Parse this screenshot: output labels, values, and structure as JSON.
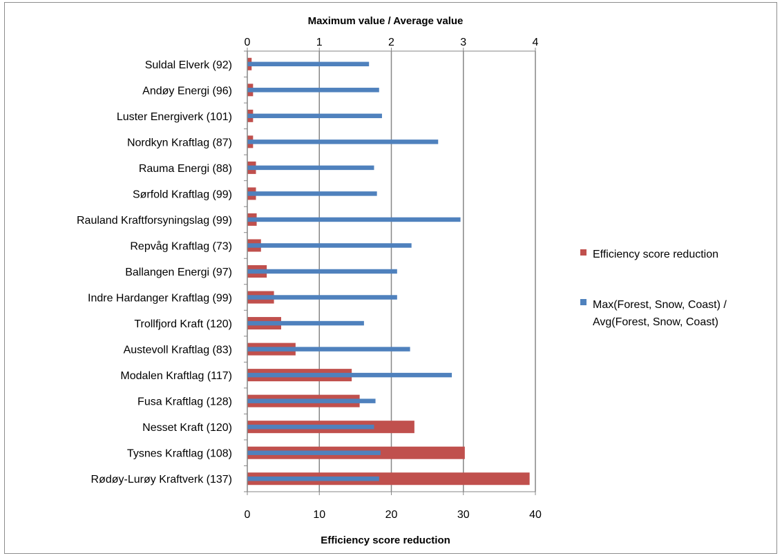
{
  "chart_data": {
    "type": "bar",
    "orientation": "horizontal",
    "categories": [
      "Suldal Elverk (92)",
      "Andøy Energi  (96)",
      "Luster Energiverk  (101)",
      "Nordkyn Kraftlag  (87)",
      "Rauma Energi  (88)",
      "Sørfold Kraftlag  (99)",
      "Rauland Kraftforsyningslag (99)",
      "Repvåg Kraftlag  (73)",
      "Ballangen Energi  (97)",
      "Indre Hardanger Kraftlag  (99)",
      "Trollfjord Kraft  (120)",
      "Austevoll Kraftlag  (83)",
      "Modalen Kraftlag  (117)",
      "Fusa Kraftlag (128)",
      "Nesset Kraft  (120)",
      "Tysnes Kraftlag  (108)",
      "Rødøy-Lurøy Kraftverk  (137)"
    ],
    "series": [
      {
        "name": "Efficiency score reduction",
        "axis": "bottom",
        "color": "#c0504d",
        "values": [
          0.6,
          0.8,
          0.8,
          0.8,
          1.2,
          1.2,
          1.3,
          1.9,
          2.7,
          3.7,
          4.7,
          6.7,
          14.5,
          15.6,
          23.2,
          30.2,
          39.2
        ]
      },
      {
        "name": "Max(Forest, Snow, Coast) / Avg(Forest, Snow, Coast)",
        "legend_lines": [
          "Max(Forest, Snow, Coast) /",
          "Avg(Forest, Snow, Coast)"
        ],
        "axis": "top",
        "color": "#4f81bd",
        "values": [
          1.69,
          1.83,
          1.87,
          2.65,
          1.76,
          1.8,
          2.96,
          2.28,
          2.08,
          2.08,
          1.62,
          2.26,
          2.84,
          1.78,
          1.76,
          1.85,
          1.83
        ]
      }
    ],
    "x_bottom": {
      "label": "Efficiency score reduction",
      "lim": [
        0,
        40
      ],
      "ticks": [
        "0",
        "10",
        "20",
        "30",
        "40"
      ]
    },
    "x_top": {
      "label": "Maximum value / Average value",
      "lim": [
        0,
        4
      ],
      "ticks": [
        "0",
        "1",
        "2",
        "3",
        "4"
      ]
    },
    "grid": "vertical",
    "legend_position": "right"
  }
}
